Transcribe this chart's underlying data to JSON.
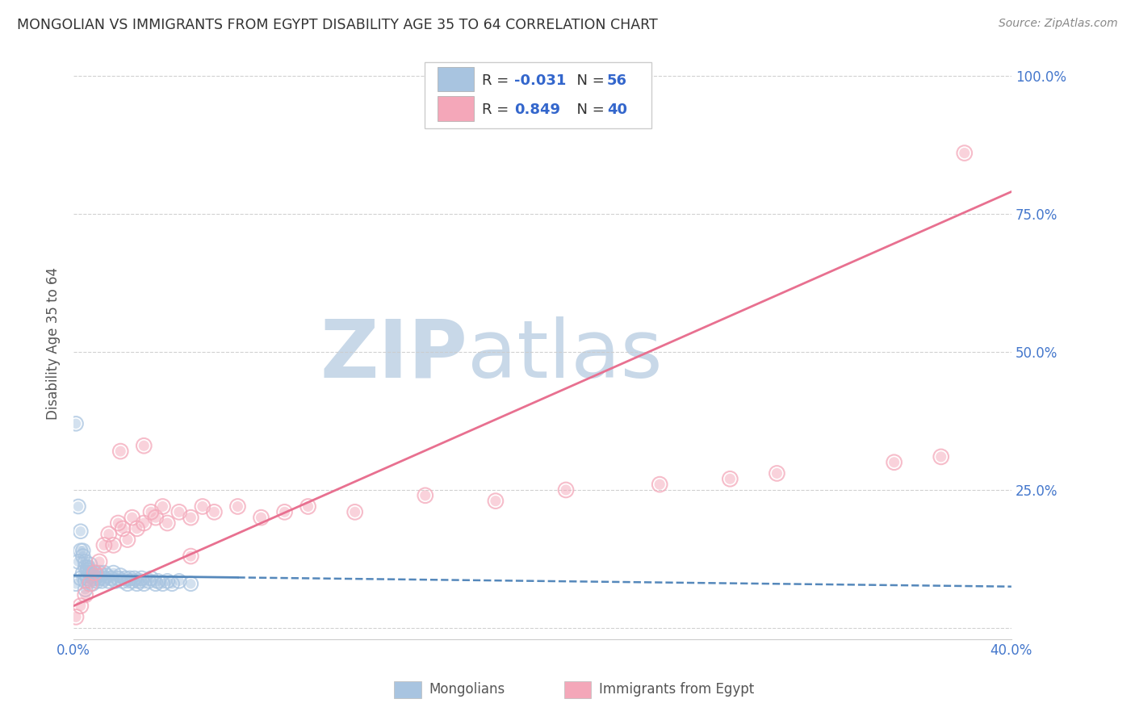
{
  "title": "MONGOLIAN VS IMMIGRANTS FROM EGYPT DISABILITY AGE 35 TO 64 CORRELATION CHART",
  "source": "Source: ZipAtlas.com",
  "ylabel": "Disability Age 35 to 64",
  "xlim": [
    0.0,
    0.4
  ],
  "ylim": [
    -0.02,
    1.05
  ],
  "mongolian_color": "#a8c4e0",
  "egypt_color": "#f4a7b9",
  "trend_mongolian_color": "#5588bb",
  "trend_egypt_color": "#e87090",
  "watermark_zip": "ZIP",
  "watermark_atlas": "atlas",
  "watermark_color_zip": "#c8d8e8",
  "watermark_color_atlas": "#c8d8e8",
  "background_color": "#ffffff",
  "grid_color": "#cccccc",
  "mongolian_scatter_x": [
    0.001,
    0.002,
    0.003,
    0.003,
    0.004,
    0.004,
    0.005,
    0.005,
    0.005,
    0.006,
    0.006,
    0.007,
    0.007,
    0.008,
    0.008,
    0.009,
    0.009,
    0.01,
    0.01,
    0.011,
    0.011,
    0.012,
    0.013,
    0.013,
    0.014,
    0.015,
    0.016,
    0.017,
    0.018,
    0.019,
    0.02,
    0.021,
    0.022,
    0.023,
    0.024,
    0.025,
    0.026,
    0.027,
    0.028,
    0.029,
    0.03,
    0.032,
    0.033,
    0.035,
    0.036,
    0.038,
    0.04,
    0.042,
    0.045,
    0.05,
    0.001,
    0.002,
    0.003,
    0.004,
    0.005,
    0.006
  ],
  "mongolian_scatter_y": [
    0.08,
    0.12,
    0.09,
    0.14,
    0.1,
    0.13,
    0.07,
    0.11,
    0.085,
    0.09,
    0.105,
    0.1,
    0.115,
    0.08,
    0.095,
    0.09,
    0.1,
    0.085,
    0.095,
    0.09,
    0.1,
    0.085,
    0.1,
    0.09,
    0.095,
    0.085,
    0.09,
    0.1,
    0.085,
    0.09,
    0.095,
    0.085,
    0.09,
    0.08,
    0.09,
    0.085,
    0.09,
    0.08,
    0.085,
    0.09,
    0.08,
    0.085,
    0.09,
    0.08,
    0.085,
    0.08,
    0.085,
    0.08,
    0.085,
    0.08,
    0.37,
    0.22,
    0.175,
    0.14,
    0.12,
    0.11
  ],
  "egypt_scatter_x": [
    0.001,
    0.003,
    0.005,
    0.007,
    0.009,
    0.011,
    0.013,
    0.015,
    0.017,
    0.019,
    0.021,
    0.023,
    0.025,
    0.027,
    0.03,
    0.033,
    0.035,
    0.038,
    0.04,
    0.045,
    0.05,
    0.055,
    0.06,
    0.07,
    0.08,
    0.09,
    0.1,
    0.12,
    0.15,
    0.18,
    0.21,
    0.25,
    0.28,
    0.3,
    0.35,
    0.37,
    0.02,
    0.03,
    0.05,
    0.38
  ],
  "egypt_scatter_y": [
    0.02,
    0.04,
    0.06,
    0.08,
    0.1,
    0.12,
    0.15,
    0.17,
    0.15,
    0.19,
    0.18,
    0.16,
    0.2,
    0.18,
    0.19,
    0.21,
    0.2,
    0.22,
    0.19,
    0.21,
    0.2,
    0.22,
    0.21,
    0.22,
    0.2,
    0.21,
    0.22,
    0.21,
    0.24,
    0.23,
    0.25,
    0.26,
    0.27,
    0.28,
    0.3,
    0.31,
    0.32,
    0.33,
    0.13,
    0.86
  ],
  "mongolian_trend_intercept": 0.095,
  "mongolian_trend_slope": -0.05,
  "egypt_trend_intercept": 0.04,
  "egypt_trend_slope": 1.875
}
